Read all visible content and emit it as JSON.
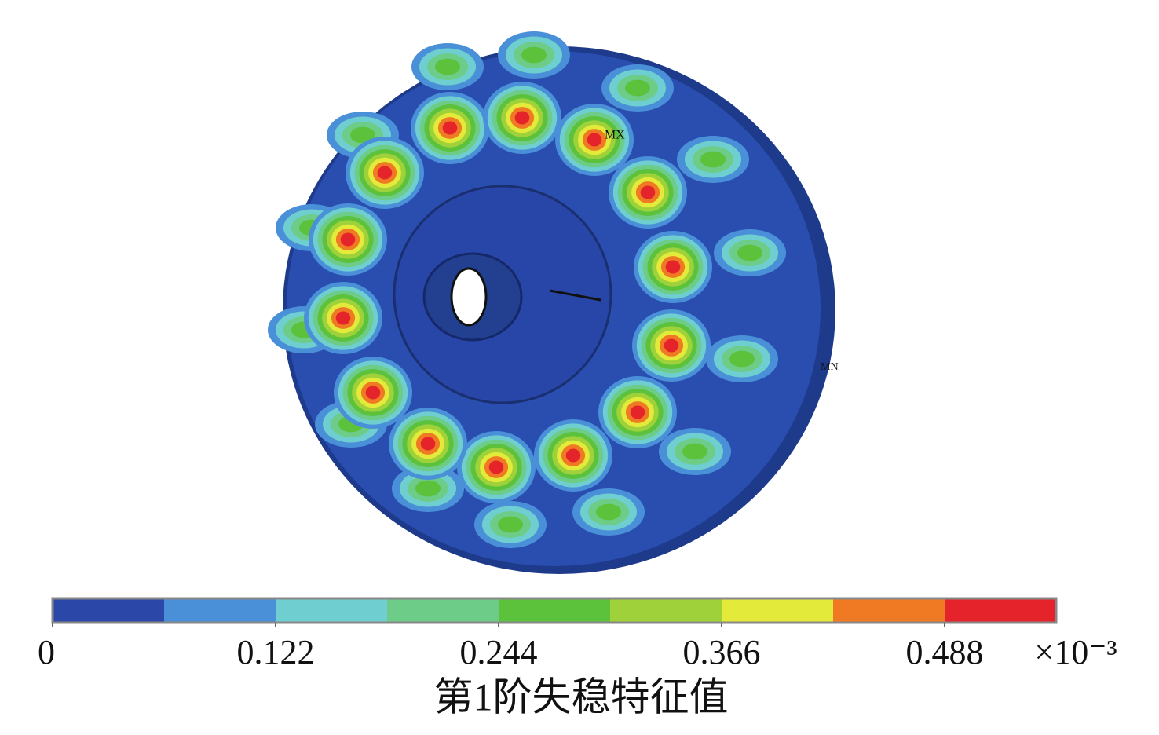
{
  "chart_data": {
    "type": "contour",
    "xlabel": "第1阶失稳特征值",
    "axis_multiplier": "×10⁻³",
    "annotations": [
      "MX",
      "MN"
    ],
    "levels": [
      0,
      0.061,
      0.122,
      0.183,
      0.244,
      0.305,
      0.366,
      0.427,
      0.488,
      0.549
    ],
    "colors": [
      "#2b47a8",
      "#4a90d8",
      "#6fcfd0",
      "#6ccc88",
      "#5cc23c",
      "#9fd23a",
      "#e3ea3a",
      "#f07a24",
      "#e4232a"
    ],
    "xlim": [
      0,
      0.549
    ],
    "xticks": [
      0,
      0.122,
      0.244,
      0.366,
      0.488
    ]
  }
}
